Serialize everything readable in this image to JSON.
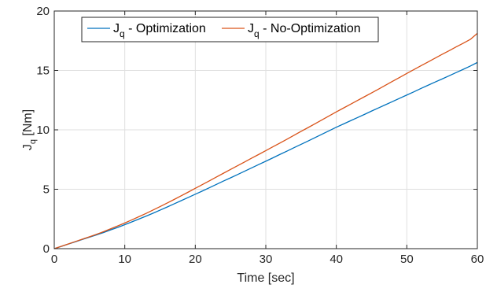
{
  "chart_data": {
    "type": "line",
    "title": "",
    "xlabel": "Time [sec]",
    "ylabel": "J_q [Nm]",
    "xlim": [
      0,
      60
    ],
    "ylim": [
      0,
      20
    ],
    "xticks": [
      0,
      10,
      20,
      30,
      40,
      50,
      60
    ],
    "yticks": [
      0,
      5,
      10,
      15,
      20
    ],
    "grid": true,
    "legend_position": "top-center",
    "x": [
      0,
      1,
      2,
      3,
      4,
      5,
      6,
      7,
      8,
      9,
      10,
      11,
      12,
      13,
      14,
      15,
      16,
      17,
      18,
      19,
      20,
      21,
      22,
      23,
      24,
      25,
      26,
      27,
      28,
      29,
      30,
      31,
      32,
      33,
      34,
      35,
      36,
      37,
      38,
      39,
      40,
      41,
      42,
      43,
      44,
      45,
      46,
      47,
      48,
      49,
      50,
      51,
      52,
      53,
      54,
      55,
      56,
      57,
      58,
      59,
      60
    ],
    "series": [
      {
        "name": "J_q - Optimization",
        "name_main": "J",
        "name_sub": "q",
        "name_rest": " - Optimization",
        "color": "#0072BD",
        "values": [
          0.0,
          0.19,
          0.39,
          0.58,
          0.78,
          0.97,
          1.16,
          1.36,
          1.58,
          1.79,
          2.02,
          2.25,
          2.49,
          2.73,
          2.98,
          3.24,
          3.5,
          3.77,
          4.04,
          4.31,
          4.58,
          4.85,
          5.13,
          5.41,
          5.69,
          5.96,
          6.24,
          6.52,
          6.8,
          7.08,
          7.36,
          7.64,
          7.93,
          8.21,
          8.5,
          8.78,
          9.06,
          9.35,
          9.64,
          9.93,
          10.22,
          10.49,
          10.76,
          11.03,
          11.3,
          11.58,
          11.85,
          12.12,
          12.39,
          12.66,
          12.93,
          13.2,
          13.48,
          13.75,
          14.02,
          14.28,
          14.55,
          14.82,
          15.09,
          15.37,
          15.67
        ]
      },
      {
        "name": "J_q - No-Optimization",
        "name_main": "J",
        "name_sub": "q",
        "name_rest": " - No-Optimization",
        "color": "#D95319",
        "values": [
          0.0,
          0.2,
          0.4,
          0.6,
          0.8,
          1.0,
          1.21,
          1.43,
          1.67,
          1.91,
          2.16,
          2.42,
          2.69,
          2.96,
          3.25,
          3.54,
          3.84,
          4.14,
          4.45,
          4.76,
          5.08,
          5.39,
          5.71,
          6.03,
          6.35,
          6.67,
          6.98,
          7.3,
          7.62,
          7.93,
          8.25,
          8.57,
          8.89,
          9.21,
          9.54,
          9.87,
          10.19,
          10.52,
          10.85,
          11.18,
          11.51,
          11.83,
          12.15,
          12.47,
          12.79,
          13.11,
          13.43,
          13.76,
          14.09,
          14.42,
          14.75,
          15.07,
          15.39,
          15.71,
          16.03,
          16.35,
          16.66,
          16.98,
          17.29,
          17.61,
          18.12
        ]
      }
    ]
  }
}
